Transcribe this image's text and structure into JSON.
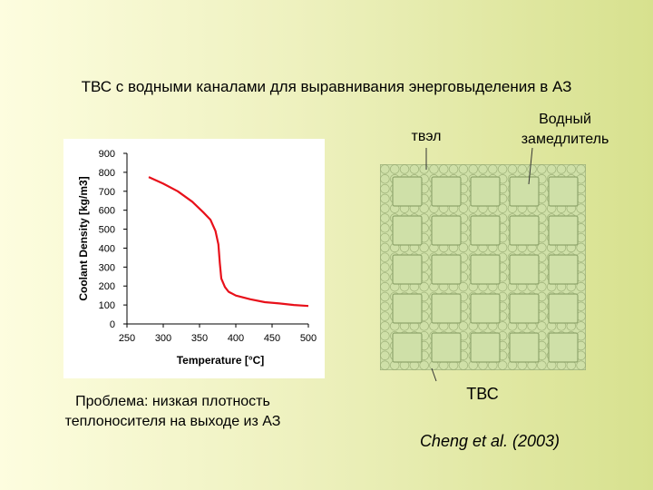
{
  "slide": {
    "title": "ТВС с водными каналами для выравнивания энерговыделения в АЗ",
    "problem_caption_line1": "Проблема: низкая плотность",
    "problem_caption_line2": "теплоносителя на выходе из АЗ",
    "tvel_label": "твэл",
    "moderator_label_line1": "Водный",
    "moderator_label_line2": "замедлитель",
    "assembly_label": "ТВС",
    "citation": "Cheng et al. (2003)"
  },
  "colors": {
    "curve": "#e8101a",
    "lattice_fill": "#cfe0a8",
    "lattice_stroke": "#9fb27a",
    "channel_fill": "#cfe0a8",
    "channel_stroke": "#8fa56c"
  },
  "lattice": {
    "rows": 5,
    "cols": 5,
    "description_icon": "fuel-assembly-cross-section"
  },
  "chart_data": {
    "type": "line",
    "xlabel": "Temperature [°C]",
    "ylabel": "Coolant Density [kg/m3]",
    "xlim": [
      250,
      500
    ],
    "ylim": [
      0,
      900
    ],
    "x_ticks": [
      "250",
      "300",
      "350",
      "400",
      "450",
      "500"
    ],
    "y_ticks": [
      "0",
      "100",
      "200",
      "300",
      "400",
      "500",
      "600",
      "700",
      "800",
      "900"
    ],
    "grid": false,
    "legend": "none",
    "series": [
      {
        "x": [
          280,
          300,
          320,
          340,
          355,
          365,
          372,
          376,
          378,
          380,
          385,
          390,
          400,
          420,
          440,
          460,
          480,
          500
        ],
        "y": [
          775,
          740,
          700,
          645,
          590,
          550,
          490,
          420,
          320,
          240,
          195,
          170,
          150,
          130,
          115,
          108,
          100,
          95
        ]
      }
    ]
  }
}
